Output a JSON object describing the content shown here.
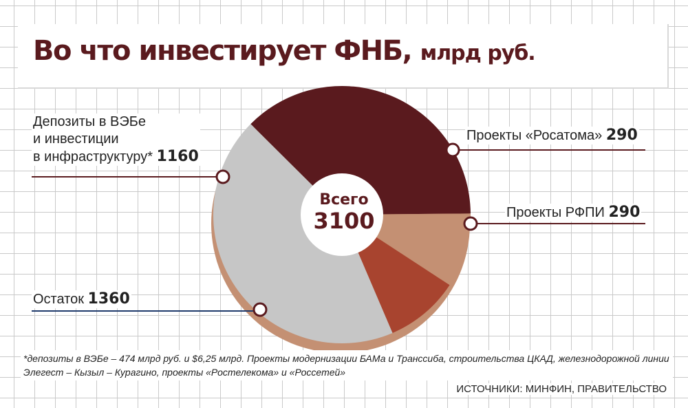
{
  "title": {
    "main": "Во что инвестирует ФНБ,",
    "unit": "млрд руб."
  },
  "chart_data": {
    "type": "pie",
    "donut": true,
    "total_label": "Всего",
    "total_value": "3100",
    "series": [
      {
        "label": "Депозиты в ВЭБе и инвестиции в инфраструктуру*",
        "value": 1160,
        "value_text": "1160",
        "color": "#5a1a1e"
      },
      {
        "label": "Проекты «Росатома»",
        "value": 290,
        "value_text": "290",
        "color": "#c49073"
      },
      {
        "label": "Проекты РФПИ",
        "value": 290,
        "value_text": "290",
        "color": "#a8442f"
      },
      {
        "label": "Остаток",
        "value": 1360,
        "value_text": "1360",
        "color": "#c6c6c6"
      }
    ]
  },
  "labels": {
    "deposits": {
      "line1": "Депозиты в ВЭБе",
      "line2": "и инвестиции",
      "line3": "в инфраструктуру*",
      "value": "1160"
    },
    "rosatom": {
      "text": "Проекты «Росатома»",
      "value": "290"
    },
    "rfpi": {
      "text": "Проекты РФПИ",
      "value": "290"
    },
    "rest": {
      "text": "Остаток",
      "value": "1360"
    }
  },
  "footnote": "*депозиты в ВЭБе – 474 млрд руб. и $6,25 млрд. Проекты модернизации БАМа и Транссиба, строительства ЦКАД, железнодорожной линии Элегест – Кызыл – Курагино, проекты «Ростелекома» и «Россетей»",
  "source": "ИСТОЧНИКИ: МИНФИН, ПРАВИТЕЛЬСТВО",
  "colors": {
    "title": "#5a1a1e",
    "leader_dark": "#5a1a1e",
    "leader_blue": "#1f3a6b",
    "outline": "#c49073"
  }
}
